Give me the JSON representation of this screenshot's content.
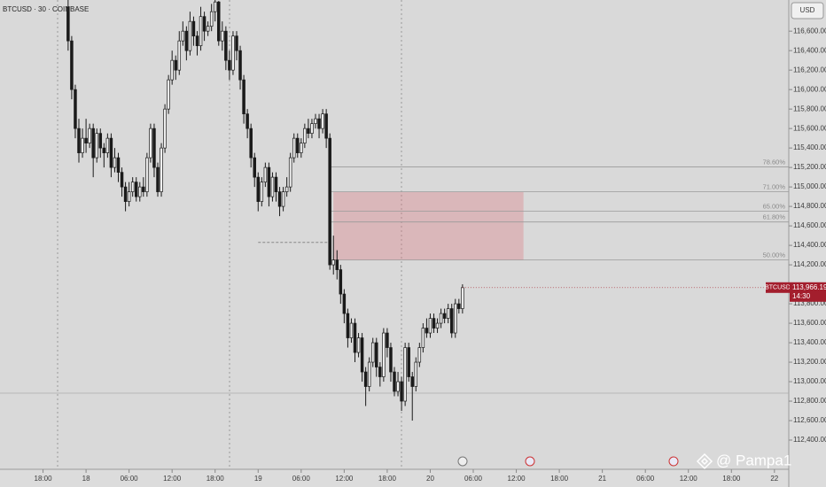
{
  "chart_data": {
    "type": "candlestick",
    "title": "BTCUSD · 30 · COINBASE",
    "currency": "USD",
    "watermark": "@ Pampa1",
    "up_color": "#f2f2f2",
    "down_color": "#1a1a1a",
    "outline_color": "#1a1a1a",
    "x": [
      3.5,
      4,
      4.5,
      5,
      5.5,
      6,
      6.5,
      7,
      7.5,
      8,
      8.5,
      9,
      9.5,
      10,
      10.5,
      11,
      11.5,
      12,
      12.5,
      13,
      13.5,
      14,
      14.5,
      15,
      15.5,
      16,
      16.5,
      17,
      17.5,
      18,
      18.5,
      19,
      19.5,
      20,
      20.5,
      21,
      21.5,
      22,
      22.5,
      23,
      23.5,
      24,
      24.5,
      25,
      25.5,
      26,
      26.5,
      27,
      27.5,
      28,
      28.5,
      29,
      29.5,
      30,
      30.5,
      31,
      31.5,
      32,
      32.5,
      33,
      33.5,
      34,
      34.5,
      35,
      35.5,
      36,
      36.5,
      37,
      37.5,
      38,
      38.5,
      39,
      39.5,
      40,
      40.5,
      41,
      41.5,
      42,
      42.5,
      43,
      43.5,
      44,
      44.5,
      45,
      45.5,
      46,
      46.5,
      47,
      47.5,
      48,
      48.5,
      49,
      49.5,
      50,
      50.5,
      51,
      51.5,
      52,
      52.5,
      53,
      53.5,
      54,
      54.5,
      55,
      55.5,
      56,
      56.5,
      57,
      57.5,
      58,
      58.5
    ],
    "open": [
      116850,
      116500,
      116000,
      115600,
      115350,
      115500,
      115450,
      115600,
      115300,
      115550,
      115400,
      115350,
      115500,
      115200,
      115300,
      115150,
      115000,
      114850,
      114950,
      115050,
      114900,
      115000,
      114950,
      115300,
      115600,
      115200,
      114950,
      115400,
      115800,
      116100,
      116300,
      116200,
      116500,
      116600,
      116400,
      116700,
      116550,
      116450,
      116750,
      116600,
      116650,
      116800,
      116900,
      116500,
      116600,
      116300,
      116200,
      116550,
      116400,
      116100,
      115750,
      115600,
      115300,
      115100,
      114850,
      115050,
      115200,
      114900,
      115100,
      114950,
      114800,
      114950,
      115000,
      115300,
      115500,
      115350,
      115450,
      115600,
      115550,
      115650,
      115700,
      115600,
      115750,
      115500,
      114200,
      114250,
      114150,
      113900,
      113700,
      113450,
      113600,
      113300,
      113450,
      113100,
      112950,
      113200,
      113400,
      113150,
      113050,
      113500,
      113350,
      113100,
      112900,
      113000,
      112800,
      113350,
      113050,
      112950,
      113200,
      113350,
      113550,
      113500,
      113650,
      113550,
      113600,
      113700,
      113650,
      113750,
      113500,
      113800,
      113750
    ],
    "high": [
      116920,
      116550,
      116050,
      115700,
      115600,
      115700,
      115650,
      115650,
      115600,
      115600,
      115450,
      115550,
      115550,
      115400,
      115350,
      115200,
      115050,
      115050,
      115100,
      115100,
      115050,
      115100,
      115350,
      115650,
      115650,
      115250,
      115450,
      115850,
      116150,
      116400,
      116350,
      116600,
      116700,
      116650,
      116800,
      116750,
      116600,
      116850,
      116800,
      116700,
      116880,
      116920,
      116910,
      116700,
      116650,
      116400,
      116600,
      116600,
      116450,
      116150,
      115800,
      115650,
      115350,
      115150,
      115100,
      115250,
      115250,
      115150,
      115150,
      115000,
      115000,
      115100,
      115350,
      115550,
      115550,
      115500,
      115650,
      115700,
      115700,
      115750,
      115750,
      115800,
      115800,
      115550,
      114500,
      114350,
      114200,
      113950,
      113750,
      113650,
      113650,
      113500,
      113500,
      113150,
      113250,
      113450,
      113450,
      113200,
      113550,
      113550,
      113400,
      113150,
      113100,
      113050,
      113400,
      113400,
      113100,
      113250,
      113400,
      113600,
      113650,
      113700,
      113700,
      113650,
      113750,
      113750,
      113800,
      113800,
      113850,
      113850,
      114000
    ],
    "low": [
      116400,
      115900,
      115500,
      115250,
      115300,
      115350,
      115400,
      115100,
      115250,
      115300,
      115200,
      115300,
      115100,
      115150,
      115050,
      114900,
      114750,
      114800,
      114900,
      114850,
      114850,
      114900,
      114900,
      115250,
      115100,
      114900,
      114900,
      115350,
      115750,
      116050,
      116100,
      116150,
      116450,
      116300,
      116350,
      116450,
      116350,
      116400,
      116500,
      116550,
      116600,
      116700,
      116450,
      116400,
      116200,
      116100,
      116150,
      116300,
      116000,
      115650,
      115500,
      115200,
      115000,
      114750,
      114800,
      115000,
      114800,
      114850,
      114850,
      114700,
      114750,
      114900,
      114950,
      115250,
      115300,
      115300,
      115400,
      115500,
      115500,
      115600,
      115500,
      115550,
      115400,
      114150,
      114100,
      114050,
      113800,
      113600,
      113350,
      113400,
      113200,
      113250,
      113000,
      112750,
      112900,
      113150,
      113050,
      112950,
      113000,
      113250,
      113000,
      112850,
      112850,
      112700,
      112750,
      113000,
      112600,
      112900,
      113150,
      113300,
      113450,
      113450,
      113500,
      113500,
      113550,
      113600,
      113600,
      113450,
      113450,
      113700,
      113700
    ],
    "close": [
      116500,
      116000,
      115600,
      115350,
      115500,
      115450,
      115600,
      115300,
      115550,
      115400,
      115350,
      115500,
      115200,
      115300,
      115150,
      115000,
      114850,
      114950,
      115050,
      114900,
      115000,
      114950,
      115300,
      115600,
      115200,
      114950,
      115400,
      115800,
      116100,
      116300,
      116200,
      116500,
      116600,
      116400,
      116700,
      116550,
      116450,
      116750,
      116600,
      116650,
      116800,
      116900,
      116500,
      116600,
      116300,
      116200,
      116550,
      116400,
      116100,
      115750,
      115600,
      115300,
      115100,
      114850,
      115050,
      115200,
      114900,
      115100,
      114950,
      114800,
      114950,
      115000,
      115300,
      115500,
      115350,
      115450,
      115600,
      115550,
      115650,
      115700,
      115600,
      115750,
      115500,
      114200,
      114250,
      114150,
      113900,
      113700,
      113450,
      113600,
      113300,
      113450,
      113100,
      112950,
      113200,
      113400,
      113150,
      113050,
      113500,
      113350,
      113100,
      112900,
      113000,
      112800,
      113350,
      113050,
      112950,
      113200,
      113350,
      113550,
      113500,
      113650,
      113550,
      113600,
      113700,
      113650,
      113750,
      113500,
      113800,
      113750,
      113966.19
    ],
    "xlim": [
      -6,
      104
    ],
    "xticks": [
      {
        "value": 0,
        "label": "18:00"
      },
      {
        "value": 6,
        "label": "18"
      },
      {
        "value": 12,
        "label": "06:00"
      },
      {
        "value": 18,
        "label": "12:00"
      },
      {
        "value": 24,
        "label": "18:00"
      },
      {
        "value": 30,
        "label": "19"
      },
      {
        "value": 36,
        "label": "06:00"
      },
      {
        "value": 42,
        "label": "12:00"
      },
      {
        "value": 48,
        "label": "18:00"
      },
      {
        "value": 54,
        "label": "20"
      },
      {
        "value": 60,
        "label": "06:00"
      },
      {
        "value": 66,
        "label": "12:00"
      },
      {
        "value": 72,
        "label": "18:00"
      },
      {
        "value": 78,
        "label": "21"
      },
      {
        "value": 84,
        "label": "06:00"
      },
      {
        "value": 90,
        "label": "12:00"
      },
      {
        "value": 96,
        "label": "18:00"
      },
      {
        "value": 102,
        "label": "22"
      }
    ],
    "ylim": [
      112100,
      116920
    ],
    "yticks": [
      {
        "value": 112400,
        "label": "112,400.00"
      },
      {
        "value": 112600,
        "label": "112,600.00"
      },
      {
        "value": 112800,
        "label": "112,800.00"
      },
      {
        "value": 113000,
        "label": "113,000.00"
      },
      {
        "value": 113200,
        "label": "113,200.00"
      },
      {
        "value": 113400,
        "label": "113,400.00"
      },
      {
        "value": 113600,
        "label": "113,600.00"
      },
      {
        "value": 113800,
        "label": "113,800.00"
      },
      {
        "value": 114200,
        "label": "114,200.00"
      },
      {
        "value": 114400,
        "label": "114,400.00"
      },
      {
        "value": 114600,
        "label": "114,600.00"
      },
      {
        "value": 114800,
        "label": "114,800.00"
      },
      {
        "value": 115000,
        "label": "115,000.00"
      },
      {
        "value": 115200,
        "label": "115,200.00"
      },
      {
        "value": 115400,
        "label": "115,400.00"
      },
      {
        "value": 115600,
        "label": "115,600.00"
      },
      {
        "value": 115800,
        "label": "115,800.00"
      },
      {
        "value": 116000,
        "label": "116,000.00"
      },
      {
        "value": 116200,
        "label": "116,200.00"
      },
      {
        "value": 116400,
        "label": "116,400.00"
      },
      {
        "value": 116600,
        "label": "116,600.00"
      }
    ],
    "fib_levels": [
      {
        "label": "78.60%",
        "value": 115205
      },
      {
        "label": "71.00%",
        "value": 114950
      },
      {
        "label": "65.00%",
        "value": 114750
      },
      {
        "label": "61.80%",
        "value": 114640
      },
      {
        "label": "50.00%",
        "value": 114250
      }
    ],
    "fib_start": 40,
    "zone": {
      "x": [
        40.5,
        67
      ],
      "y": [
        114250,
        114950
      ],
      "color": "rgba(220,120,130,0.35)"
    },
    "dashed_level": {
      "x": [
        30,
        39.75
      ],
      "value": 114430
    },
    "last_price": {
      "symbol": "BTCUSD",
      "value": 113966.19,
      "label": "113,966.19",
      "countdown": "14:30",
      "color": "#a31e2d"
    }
  }
}
